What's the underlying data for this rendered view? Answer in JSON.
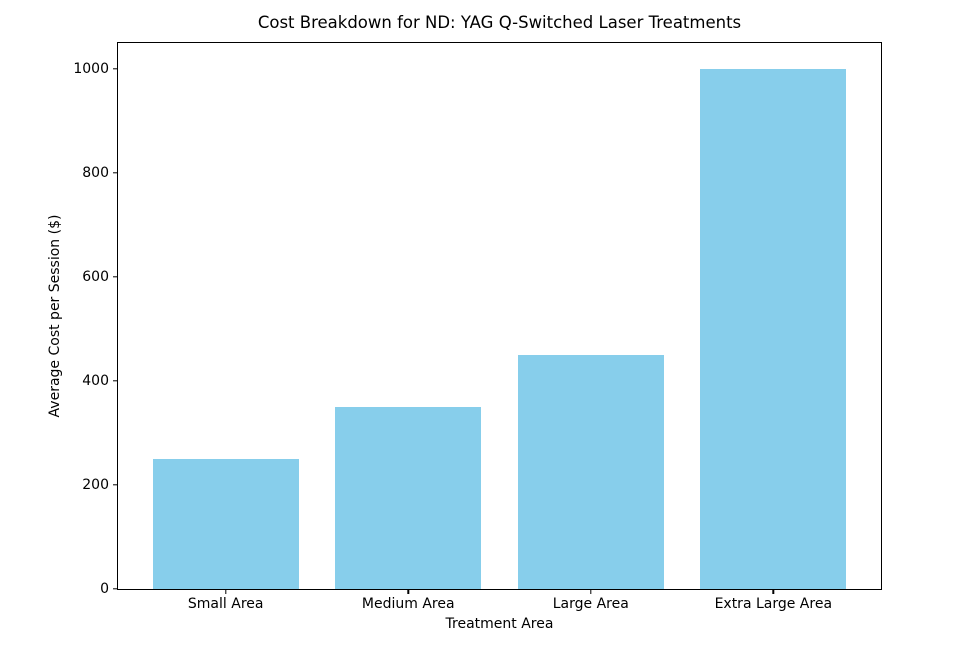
{
  "chart_data": {
    "type": "bar",
    "title": "Cost Breakdown for ND: YAG Q-Switched Laser Treatments",
    "xlabel": "Treatment Area",
    "ylabel": "Average Cost per Session ($)",
    "categories": [
      "Small Area",
      "Medium Area",
      "Large Area",
      "Extra Large Area"
    ],
    "values": [
      250,
      350,
      450,
      1000
    ],
    "yticks": [
      0,
      200,
      400,
      600,
      800,
      1000
    ],
    "ylim": [
      0,
      1050
    ],
    "xlim": [
      -0.59,
      3.59
    ],
    "bar_width_units": 0.8,
    "bar_color": "#87CEEB",
    "axis_color": "#000000",
    "background_color": "#ffffff",
    "grid": false,
    "legend": null
  }
}
